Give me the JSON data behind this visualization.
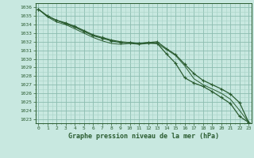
{
  "title": "Graphe pression niveau de la mer (hPa)",
  "x": [
    0,
    1,
    2,
    3,
    4,
    5,
    6,
    7,
    8,
    9,
    10,
    11,
    12,
    13,
    14,
    15,
    16,
    17,
    18,
    19,
    20,
    21,
    22,
    23
  ],
  "line1": [
    1035.8,
    1035.0,
    1034.5,
    1034.1,
    1033.7,
    1033.2,
    1032.7,
    1032.4,
    1032.1,
    1031.9,
    1031.9,
    1031.8,
    1031.9,
    1032.0,
    1031.2,
    1030.5,
    1029.4,
    1028.3,
    1027.5,
    1027.0,
    1026.5,
    1025.9,
    1024.9,
    1022.6
  ],
  "line2": [
    1035.8,
    1035.0,
    1034.5,
    1034.2,
    1033.8,
    1033.3,
    1032.8,
    1032.5,
    1032.2,
    1032.0,
    1031.9,
    1031.8,
    1031.9,
    1031.8,
    1030.6,
    1029.5,
    1027.8,
    1027.2,
    1026.8,
    1026.2,
    1025.5,
    1024.8,
    1023.3,
    1022.6
  ],
  "line3": [
    1035.8,
    1034.9,
    1034.3,
    1034.0,
    1033.5,
    1033.0,
    1032.5,
    1032.1,
    1031.8,
    1031.7,
    1031.8,
    1031.7,
    1031.8,
    1031.8,
    1031.1,
    1030.4,
    1029.2,
    1027.7,
    1027.0,
    1026.5,
    1026.0,
    1025.3,
    1024.0,
    1022.6
  ],
  "bg_color": "#c8e8e0",
  "grid_major_color": "#8cbcb0",
  "grid_minor_color": "#a8d4c8",
  "line_color": "#2a5c30",
  "marker_color": "#2a5c30",
  "title_color": "#2a5c30",
  "tick_color": "#2a5c30",
  "ylim": [
    1022.5,
    1036.5
  ],
  "xlim": [
    -0.3,
    23.3
  ],
  "yticks": [
    1023,
    1024,
    1025,
    1026,
    1027,
    1028,
    1029,
    1030,
    1031,
    1032,
    1033,
    1034,
    1035,
    1036
  ],
  "xticks": [
    0,
    1,
    2,
    3,
    4,
    5,
    6,
    7,
    8,
    9,
    10,
    11,
    12,
    13,
    14,
    15,
    16,
    17,
    18,
    19,
    20,
    21,
    22,
    23
  ]
}
